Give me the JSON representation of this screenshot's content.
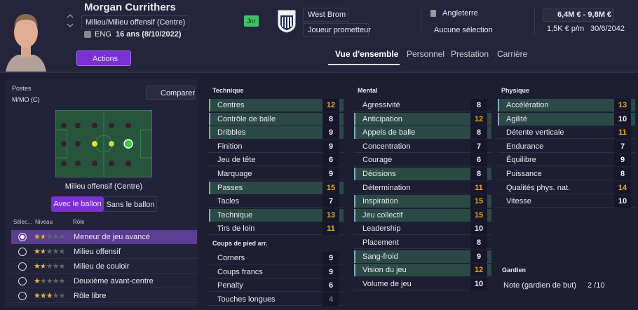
{
  "header": {
    "name": "Morgan Currithers",
    "position": "Milieu/Milieu offensif (Centre)",
    "nation": "ENG",
    "age": "16 ans (8/10/2022)",
    "badge": "Jnr",
    "club": "West Brom",
    "club_status": "Joueur prometteur",
    "country": "Angleterre",
    "selection": "Aucune sélection",
    "value": "6,4M € - 9,8M €",
    "wage": "1,5K € p/m",
    "contract_end": "30/6/2042",
    "actions": "Actions"
  },
  "tabs": [
    "Vue d'ensemble",
    "Personnel",
    "Prestation",
    "Carrière"
  ],
  "left": {
    "positions_label": "Postes",
    "positions": "M/MO (C)",
    "compare": "Comparer",
    "pitch_caption": "Milieu offensif (Centre)",
    "toggle": [
      "Avec le ballon",
      "Sans le ballon"
    ],
    "role_headers": [
      "Sélec...",
      "Niveau",
      "Rôle"
    ],
    "roles": [
      {
        "name": "Meneur de jeu avancé",
        "stars": 1.5
      },
      {
        "name": "Milieu offensif",
        "stars": 1.5
      },
      {
        "name": "Milieu de couloir",
        "stars": 1.5
      },
      {
        "name": "Deuxième avant-centre",
        "stars": 1
      },
      {
        "name": "Rôle libre",
        "stars": 2.5
      }
    ]
  },
  "attributes": {
    "technique": {
      "title": "Technique",
      "items": [
        {
          "name": "Centres",
          "value": 12,
          "highlight": true
        },
        {
          "name": "Contrôle de balle",
          "value": 8,
          "highlight": true
        },
        {
          "name": "Dribbles",
          "value": 9,
          "highlight": true
        },
        {
          "name": "Finition",
          "value": 9
        },
        {
          "name": "Jeu de tête",
          "value": 6
        },
        {
          "name": "Marquage",
          "value": 9
        },
        {
          "name": "Passes",
          "value": 15,
          "highlight": true
        },
        {
          "name": "Tacles",
          "value": 7
        },
        {
          "name": "Technique",
          "value": 13,
          "highlight": true
        },
        {
          "name": "Tirs de loin",
          "value": 11
        }
      ]
    },
    "set_pieces": {
      "title": "Coups de pied arr.",
      "items": [
        {
          "name": "Corners",
          "value": 9
        },
        {
          "name": "Coups francs",
          "value": 9
        },
        {
          "name": "Penalty",
          "value": 6
        },
        {
          "name": "Touches longues",
          "value": 4
        }
      ]
    },
    "mental": {
      "title": "Mental",
      "items": [
        {
          "name": "Agressivité",
          "value": 8
        },
        {
          "name": "Anticipation",
          "value": 12,
          "highlight": true
        },
        {
          "name": "Appels de balle",
          "value": 8,
          "highlight": true
        },
        {
          "name": "Concentration",
          "value": 7
        },
        {
          "name": "Courage",
          "value": 6
        },
        {
          "name": "Décisions",
          "value": 8,
          "highlight": true
        },
        {
          "name": "Détermination",
          "value": 11
        },
        {
          "name": "Inspiration",
          "value": 15,
          "highlight": true
        },
        {
          "name": "Jeu collectif",
          "value": 15,
          "highlight": true
        },
        {
          "name": "Leadership",
          "value": 10
        },
        {
          "name": "Placement",
          "value": 8
        },
        {
          "name": "Sang-froid",
          "value": 9,
          "highlight": true
        },
        {
          "name": "Vision du jeu",
          "value": 12,
          "highlight": true
        },
        {
          "name": "Volume de jeu",
          "value": 10
        }
      ]
    },
    "physique": {
      "title": "Physique",
      "items": [
        {
          "name": "Accélération",
          "value": 13,
          "highlight": true
        },
        {
          "name": "Agilité",
          "value": 10,
          "highlight": true
        },
        {
          "name": "Détente verticale",
          "value": 11
        },
        {
          "name": "Endurance",
          "value": 7
        },
        {
          "name": "Équilibre",
          "value": 9
        },
        {
          "name": "Puissance",
          "value": 8
        },
        {
          "name": "Qualités phys. nat.",
          "value": 14
        },
        {
          "name": "Vitesse",
          "value": 10
        }
      ]
    },
    "goalkeeper": {
      "title": "Gardien",
      "label": "Note (gardien de but)",
      "value": "2 /10"
    }
  }
}
